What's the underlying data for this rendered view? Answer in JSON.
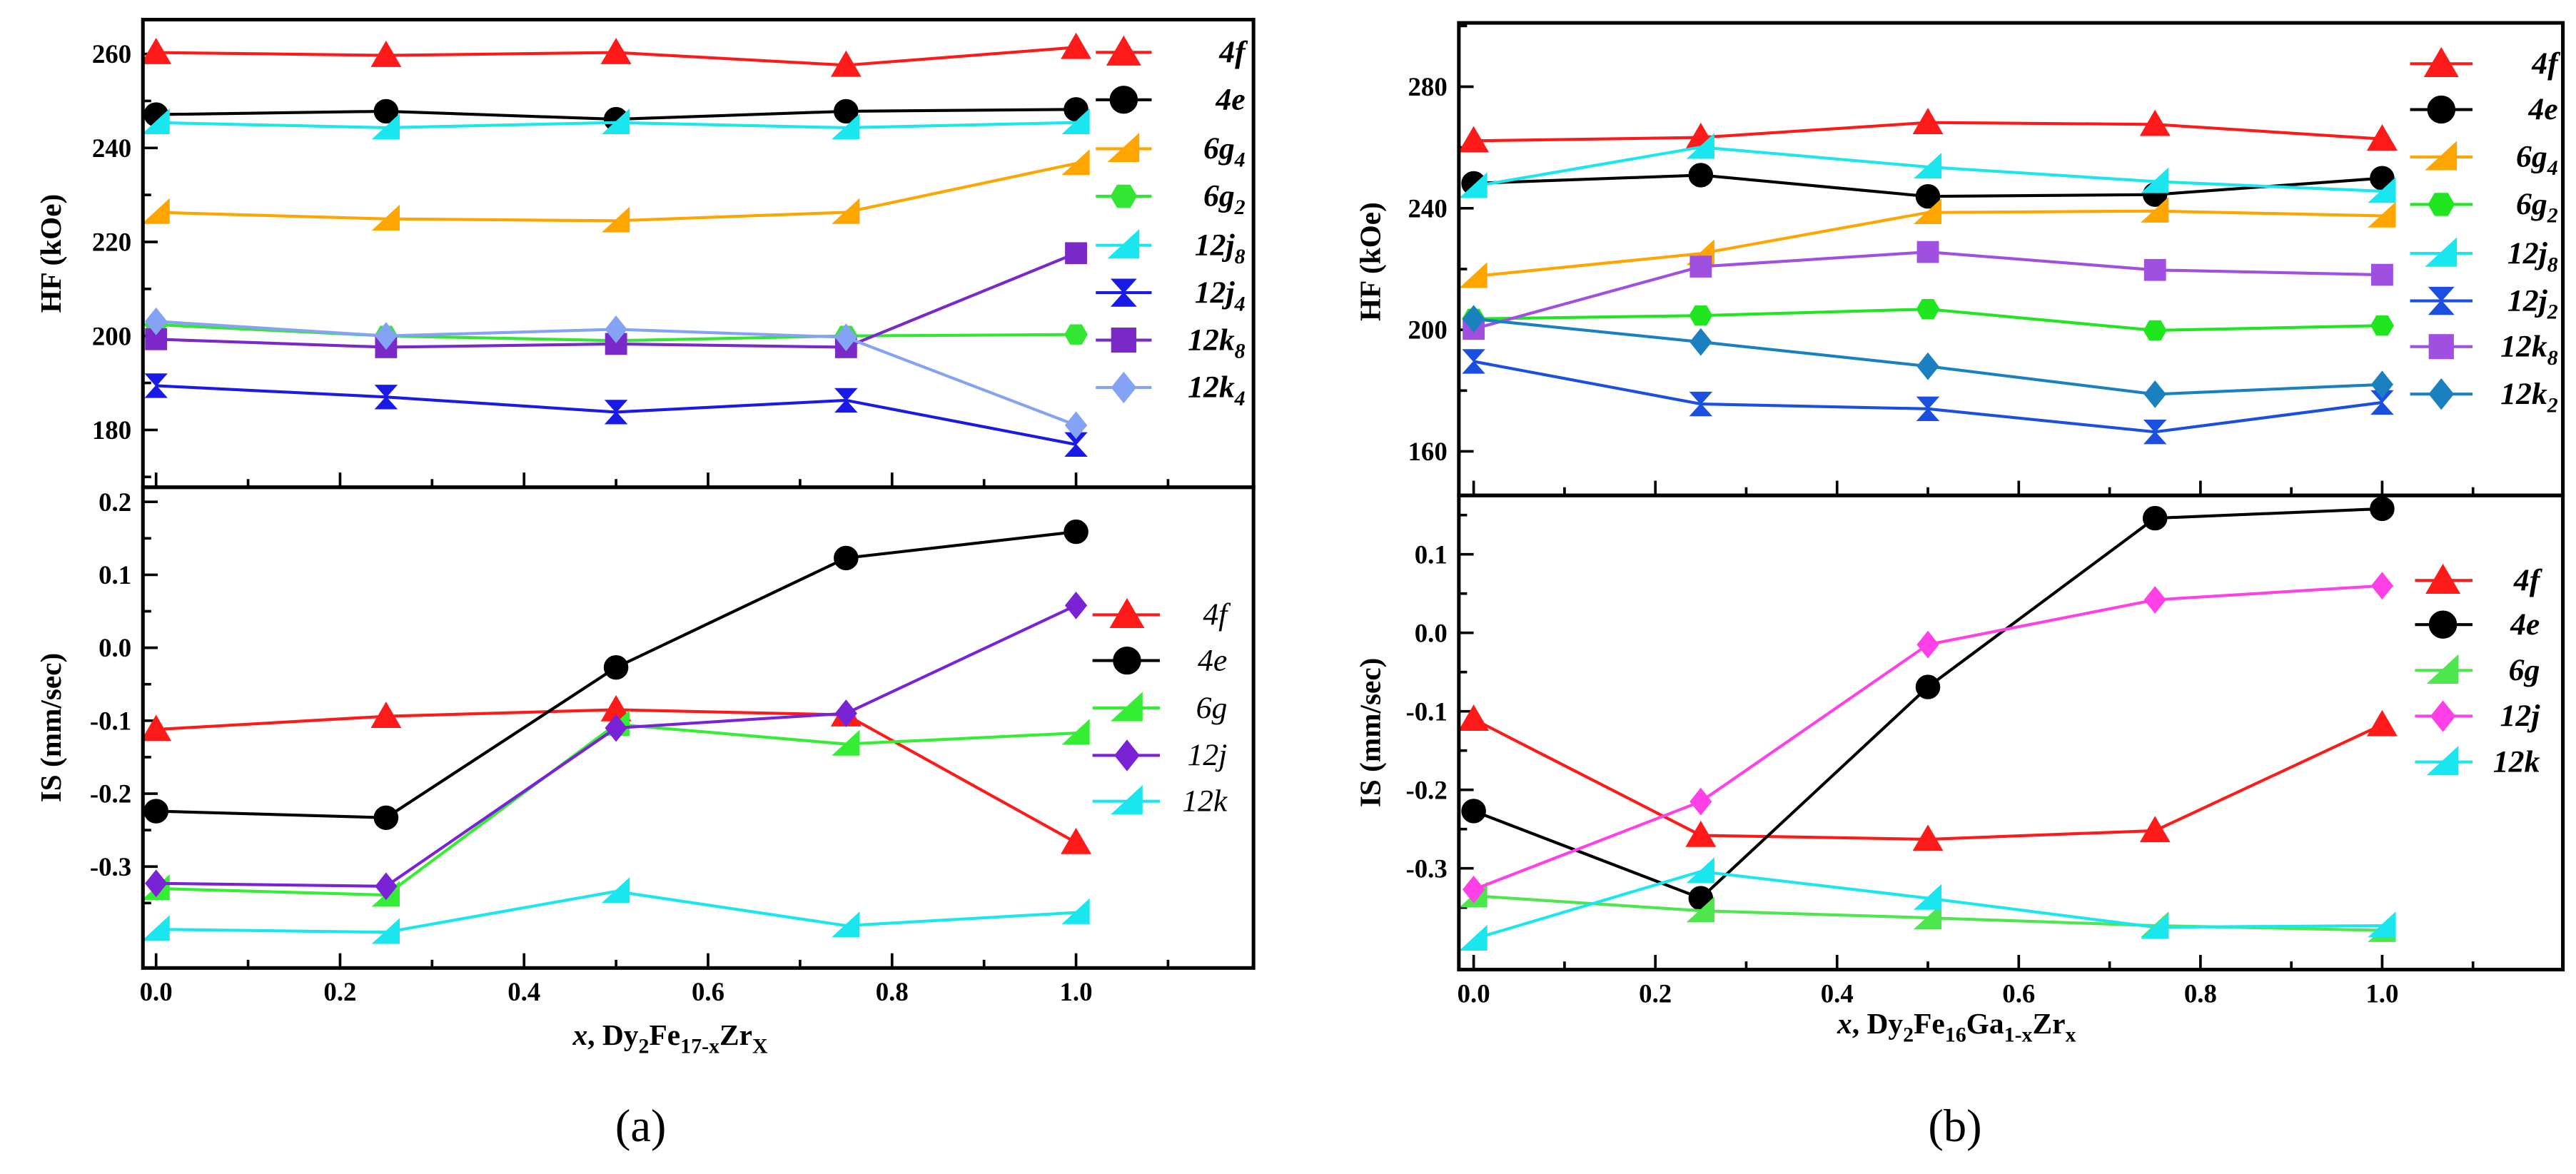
{
  "figure": {
    "panel_a": "(a)",
    "panel_b": "(b)"
  },
  "chart_data": [
    {
      "type": "line",
      "ylabel": "HF (kOe)",
      "x": [
        0,
        0.25,
        0.5,
        0.75,
        1.0
      ],
      "xlim": [
        -0.0143,
        1.1929
      ],
      "xticks": [
        0,
        0.2,
        0.4,
        0.6,
        0.8,
        1.0
      ],
      "ylim": [
        167.8,
        267.3
      ],
      "yticks": [
        180,
        200,
        220,
        240,
        260
      ],
      "ytick_labels": [
        "180",
        "200",
        "220",
        "240",
        "260"
      ],
      "grid": false,
      "legend": "right",
      "series": [
        {
          "name": "4f",
          "sub": "",
          "color": "#ff1a1a",
          "marker": "triangle",
          "values": [
            260.3,
            259.7,
            260.3,
            257.6,
            261.4
          ]
        },
        {
          "name": "4e",
          "sub": "",
          "color": "#000000",
          "marker": "circle",
          "values": [
            247.1,
            247.8,
            246.1,
            247.8,
            248.2
          ]
        },
        {
          "name": "6g",
          "sub": "4",
          "color": "#ffa500",
          "marker": "right-triangle",
          "values": [
            226.3,
            224.9,
            224.5,
            226.3,
            236.7
          ]
        },
        {
          "name": "6g",
          "sub": "2",
          "color": "#33e633",
          "marker": "hexagon",
          "values": [
            202.4,
            200.0,
            199.0,
            200.0,
            200.3
          ]
        },
        {
          "name": "12j",
          "sub": "8",
          "color": "#1ae6f0",
          "marker": "right-triangle",
          "values": [
            245.4,
            244.3,
            245.4,
            244.3,
            245.4
          ]
        },
        {
          "name": "12j",
          "sub": "4",
          "color": "#1a1ae6",
          "marker": "hourglass",
          "values": [
            189.4,
            187.0,
            183.8,
            186.3,
            176.9
          ]
        },
        {
          "name": "12k",
          "sub": "8",
          "color": "#7a28c8",
          "marker": "square",
          "values": [
            199.3,
            197.6,
            198.3,
            197.6,
            217.6
          ]
        },
        {
          "name": "12k",
          "sub": "4",
          "color": "#85a3f5",
          "marker": "diamond",
          "values": [
            203.1,
            200.0,
            201.4,
            199.7,
            181.0
          ]
        }
      ]
    },
    {
      "type": "line",
      "ylabel": "IS (mm/sec)",
      "xlabel_parts": [
        {
          "t": "x",
          "italic": true
        },
        {
          "t": ", Dy"
        },
        {
          "t": "2",
          "sub": true
        },
        {
          "t": "Fe"
        },
        {
          "t": "17-x",
          "sub": true
        },
        {
          "t": "Zr"
        },
        {
          "t": "X",
          "sub": true
        }
      ],
      "x": [
        0,
        0.25,
        0.5,
        0.75,
        1.0
      ],
      "xlim": [
        -0.0143,
        1.1929
      ],
      "xticks": [
        0,
        0.2,
        0.4,
        0.6,
        0.8,
        1.0
      ],
      "xtick_labels": [
        "0.0",
        "0.2",
        "0.4",
        "0.6",
        "0.8",
        "1.0"
      ],
      "ylim": [
        -0.439,
        0.22
      ],
      "yticks": [
        -0.3,
        -0.2,
        -0.1,
        0.0,
        0.1,
        0.2
      ],
      "ytick_labels": [
        "-0.3",
        "-0.2",
        "-0.1",
        "0.0",
        "0.1",
        "0.2"
      ],
      "grid": false,
      "legend": "right",
      "series": [
        {
          "name": "4f",
          "sub": "",
          "color": "#ff1a1a",
          "marker": "triangle",
          "values": [
            -0.112,
            -0.094,
            -0.085,
            -0.092,
            -0.267
          ]
        },
        {
          "name": "4e",
          "sub": "",
          "color": "#000000",
          "marker": "circle",
          "values": [
            -0.224,
            -0.233,
            -0.027,
            0.123,
            0.159
          ]
        },
        {
          "name": "6g",
          "sub": "",
          "color": "#33ee33",
          "marker": "right-triangle",
          "values": [
            -0.33,
            -0.339,
            -0.105,
            -0.132,
            -0.117
          ]
        },
        {
          "name": "12j",
          "sub": "",
          "color": "#7a22d6",
          "marker": "diamond",
          "values": [
            -0.323,
            -0.327,
            -0.11,
            -0.09,
            0.058
          ]
        },
        {
          "name": "12k",
          "sub": "",
          "color": "#1ae6f0",
          "marker": "right-triangle",
          "values": [
            -0.386,
            -0.39,
            -0.334,
            -0.381,
            -0.363
          ]
        }
      ]
    },
    {
      "type": "line",
      "ylabel": "HF (kOe)",
      "x": [
        0,
        0.25,
        0.5,
        0.75,
        1.0
      ],
      "xlim": [
        -0.0163,
        1.1989
      ],
      "xticks": [
        0,
        0.2,
        0.4,
        0.6,
        0.8,
        1.0
      ],
      "ylim": [
        145.5,
        301.0
      ],
      "yticks": [
        160,
        200,
        240,
        280
      ],
      "ytick_labels": [
        "160",
        "200",
        "240",
        "280"
      ],
      "grid": false,
      "legend": "right",
      "series": [
        {
          "name": "4f",
          "sub": "",
          "color": "#ff1a1a",
          "marker": "triangle",
          "values": [
            262.2,
            263.3,
            268.2,
            267.6,
            262.8
          ]
        },
        {
          "name": "4e",
          "sub": "",
          "color": "#000000",
          "marker": "circle",
          "values": [
            248.2,
            250.9,
            243.9,
            244.5,
            249.9
          ]
        },
        {
          "name": "6g",
          "sub": "4",
          "color": "#ffa500",
          "marker": "right-triangle",
          "values": [
            217.6,
            225.1,
            238.6,
            239.1,
            237.5
          ]
        },
        {
          "name": "6g",
          "sub": "2",
          "color": "#1fe61f",
          "marker": "hexagon",
          "values": [
            203.6,
            204.7,
            206.8,
            199.8,
            201.4
          ]
        },
        {
          "name": "12j",
          "sub": "8",
          "color": "#1ae6f0",
          "marker": "right-triangle",
          "values": [
            247.2,
            260.1,
            253.6,
            248.8,
            245.6
          ]
        },
        {
          "name": "12j",
          "sub": "2",
          "color": "#1a4fe0",
          "marker": "hourglass",
          "values": [
            189.6,
            175.6,
            174.0,
            166.4,
            176.1
          ]
        },
        {
          "name": "12k",
          "sub": "8",
          "color": "#a050e0",
          "marker": "square",
          "values": [
            200.3,
            220.8,
            225.6,
            219.7,
            218.1
          ]
        },
        {
          "name": "12k",
          "sub": "2",
          "color": "#1a80c0",
          "marker": "diamond",
          "values": [
            203.6,
            196.0,
            188.0,
            178.8,
            182.0
          ]
        }
      ]
    },
    {
      "type": "line",
      "ylabel": "IS (mm/sec)",
      "xlabel_parts": [
        {
          "t": "x",
          "italic": true
        },
        {
          "t": ", Dy"
        },
        {
          "t": "2",
          "sub": true
        },
        {
          "t": "Fe"
        },
        {
          "t": "16",
          "sub": true
        },
        {
          "t": "Ga"
        },
        {
          "t": "1-x",
          "sub": true
        },
        {
          "t": "Zr"
        },
        {
          "t": "x",
          "sub": true
        }
      ],
      "x": [
        0,
        0.25,
        0.5,
        0.75,
        1.0
      ],
      "xlim": [
        -0.0163,
        1.1989
      ],
      "xticks": [
        0,
        0.2,
        0.4,
        0.6,
        0.8,
        1.0
      ],
      "xtick_labels": [
        "0.0",
        "0.2",
        "0.4",
        "0.6",
        "0.8",
        "1.0"
      ],
      "ylim": [
        -0.429,
        0.175
      ],
      "yticks": [
        -0.3,
        -0.2,
        -0.1,
        0.0,
        0.1
      ],
      "ytick_labels": [
        "-0.3",
        "-0.2",
        "-0.1",
        "0.0",
        "0.1"
      ],
      "grid": false,
      "legend": "right",
      "series": [
        {
          "name": "4f",
          "sub": "",
          "color": "#ff1a1a",
          "marker": "triangle",
          "values": [
            -0.11,
            -0.258,
            -0.263,
            -0.252,
            -0.117
          ]
        },
        {
          "name": "4e",
          "sub": "",
          "color": "#000000",
          "marker": "circle",
          "values": [
            -0.227,
            -0.338,
            -0.069,
            0.146,
            0.158
          ]
        },
        {
          "name": "6g",
          "sub": "",
          "color": "#4de64d",
          "marker": "right-triangle",
          "values": [
            -0.335,
            -0.354,
            -0.363,
            -0.373,
            -0.379
          ]
        },
        {
          "name": "12j",
          "sub": "",
          "color": "#ff40e6",
          "marker": "diamond",
          "values": [
            -0.327,
            -0.215,
            -0.015,
            0.042,
            0.06
          ]
        },
        {
          "name": "12k",
          "sub": "",
          "color": "#1ae6f0",
          "marker": "right-triangle",
          "values": [
            -0.39,
            -0.304,
            -0.338,
            -0.375,
            -0.373
          ]
        }
      ]
    }
  ]
}
